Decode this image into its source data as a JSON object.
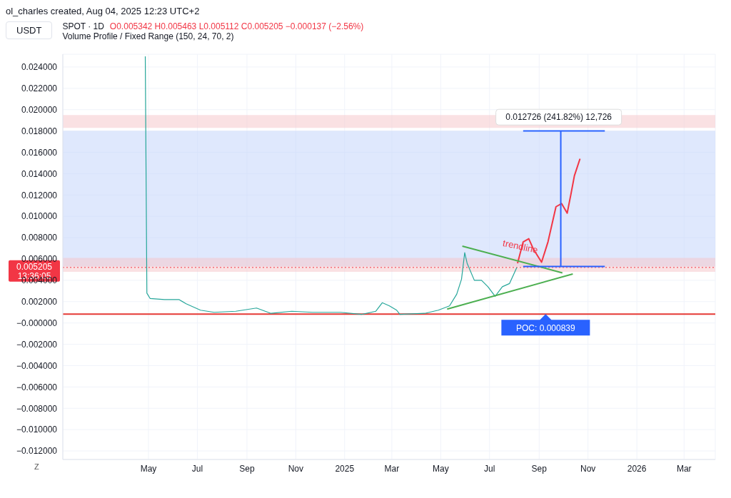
{
  "chart_data": {
    "type": "line",
    "title": "SPOT · 1D",
    "subtitle": "Volume Profile / Fixed Range (150, 24, 70, 2)",
    "annotations": [
      "ol_charles created, Aug 04, 2025 12:23 UTC+2",
      "USDT",
      "O0.005342 H0.005463 L0.005112 C0.005205 −0.000137 (−2.56%)",
      "13:36:05",
      "Z",
      "trendline"
    ],
    "xlim": [
      "2024-01-15",
      "2026-04-09"
    ],
    "xticks": [
      {
        "value": "2024-05-01",
        "label": "May"
      },
      {
        "value": "2024-07-01",
        "label": "Jul"
      },
      {
        "value": "2024-09-01",
        "label": "Sep"
      },
      {
        "value": "2024-11-01",
        "label": "Nov"
      },
      {
        "value": "2025-01-01",
        "label": "2025"
      },
      {
        "value": "2025-03-01",
        "label": "Mar"
      },
      {
        "value": "2025-05-01",
        "label": "May"
      },
      {
        "value": "2025-07-01",
        "label": "Jul"
      },
      {
        "value": "2025-09-01",
        "label": "Sep"
      },
      {
        "value": "2025-11-01",
        "label": "Nov"
      },
      {
        "value": "2026-01-01",
        "label": "2026"
      },
      {
        "value": "2026-03-01",
        "label": "Mar"
      }
    ],
    "ylim": [
      -0.0128,
      0.0252
    ],
    "yticks": [
      {
        "value": -0.012,
        "label": "−0.012000"
      },
      {
        "value": -0.01,
        "label": "−0.010000"
      },
      {
        "value": -0.008,
        "label": "−0.008000"
      },
      {
        "value": -0.006,
        "label": "−0.006000"
      },
      {
        "value": -0.004,
        "label": "−0.004000"
      },
      {
        "value": -0.002,
        "label": "−0.002000"
      },
      {
        "value": 0,
        "label": "−0.000000"
      },
      {
        "value": 0.002,
        "label": "0.002000"
      },
      {
        "value": 0.004,
        "label": "0.004000"
      },
      {
        "value": 0.006,
        "label": "0.006000"
      },
      {
        "value": 0.008,
        "label": "0.008000"
      },
      {
        "value": 0.01,
        "label": "0.010000"
      },
      {
        "value": 0.012,
        "label": "0.012000"
      },
      {
        "value": 0.014,
        "label": "0.014000"
      },
      {
        "value": 0.016,
        "label": "0.016000"
      },
      {
        "value": 0.018,
        "label": "0.018000"
      },
      {
        "value": 0.02,
        "label": "0.020000"
      },
      {
        "value": 0.022,
        "label": "0.022000"
      },
      {
        "value": 0.024,
        "label": "0.024000"
      }
    ],
    "grid": true,
    "marker": "none",
    "line_style": "solid",
    "series": [
      {
        "color": "#26a69a",
        "x": [
          "2024-04-27",
          "2024-04-29",
          "2024-05-03",
          "2024-05-21",
          "2024-06-08",
          "2024-06-17",
          "2024-07-05",
          "2024-07-22",
          "2024-08-18",
          "2024-09-13",
          "2024-10-01",
          "2024-10-27",
          "2024-11-22",
          "2024-12-09",
          "2024-12-27",
          "2025-01-22",
          "2025-02-09",
          "2025-02-17",
          "2025-02-26",
          "2025-03-07",
          "2025-03-11",
          "2025-04-11",
          "2025-04-28",
          "2025-05-12",
          "2025-05-21",
          "2025-05-27",
          "2025-05-31",
          "2025-06-03",
          "2025-06-12",
          "2025-06-21",
          "2025-06-29",
          "2025-07-08",
          "2025-07-17",
          "2025-07-26",
          "2025-08-01",
          "2025-08-04"
        ],
        "values": [
          0.025,
          0.0028,
          0.0023,
          0.0022,
          0.0022,
          0.0018,
          0.0012,
          0.001,
          0.0011,
          0.0014,
          0.0009,
          0.0011,
          0.001,
          0.001,
          0.001,
          0.0008,
          0.0011,
          0.0019,
          0.0016,
          0.0012,
          0.0008,
          0.0009,
          0.0012,
          0.0016,
          0.0027,
          0.0041,
          0.0066,
          0.0056,
          0.004,
          0.004,
          0.0034,
          0.0025,
          0.0034,
          0.0037,
          0.0047,
          0.0052
        ]
      },
      {
        "color": "#f23645",
        "x": [
          "2025-08-05",
          "2025-08-12",
          "2025-08-19",
          "2025-08-25",
          "2025-09-04",
          "2025-09-12",
          "2025-09-22",
          "2025-09-29",
          "2025-10-06",
          "2025-10-11",
          "2025-10-15",
          "2025-10-22"
        ],
        "values": [
          0.0056,
          0.0076,
          0.0079,
          0.0069,
          0.0057,
          0.0076,
          0.0109,
          0.0112,
          0.0103,
          0.0122,
          0.0138,
          0.0154
        ]
      },
      {
        "color": "#4caf50",
        "x": [
          "2025-05-28",
          "2025-09-30"
        ],
        "values": [
          0.0072,
          0.0047
        ]
      },
      {
        "color": "#4caf50",
        "x": [
          "2025-05-09",
          "2025-10-13"
        ],
        "values": [
          0.0013,
          0.0046
        ]
      },
      {
        "color": "#2962ff",
        "x": [
          "2025-09-28",
          "2025-09-28"
        ],
        "values": [
          0.0053,
          0.018
        ]
      },
      {
        "color": "#2962ff",
        "x": [
          "2025-08-12",
          "2025-11-22"
        ],
        "values": [
          0.018,
          0.018
        ]
      },
      {
        "color": "#2962ff",
        "x": [
          "2025-08-12",
          "2025-11-22"
        ],
        "values": [
          0.0053,
          0.0053
        ]
      }
    ],
    "ref_lines": [
      {
        "axis": "y",
        "value": 0.005205,
        "label": "0.005205",
        "color": "#f23645",
        "line_style": "dotted"
      },
      {
        "axis": "y",
        "value": 0.000839,
        "label": "POC: 0.000839",
        "color": "#e53935",
        "line_style": "solid"
      }
    ],
    "bands": [
      {
        "axis": "y",
        "from": 0.0053,
        "to": 0.018,
        "color": "#c5d5fb"
      },
      {
        "axis": "y",
        "from": 0.0183,
        "to": 0.0195,
        "label": "0.012726 (241.82%) 12,726",
        "color": "#f6c9cc"
      },
      {
        "axis": "y",
        "from": 0.0048,
        "to": 0.0061,
        "color": "#f6c9cc"
      }
    ]
  }
}
